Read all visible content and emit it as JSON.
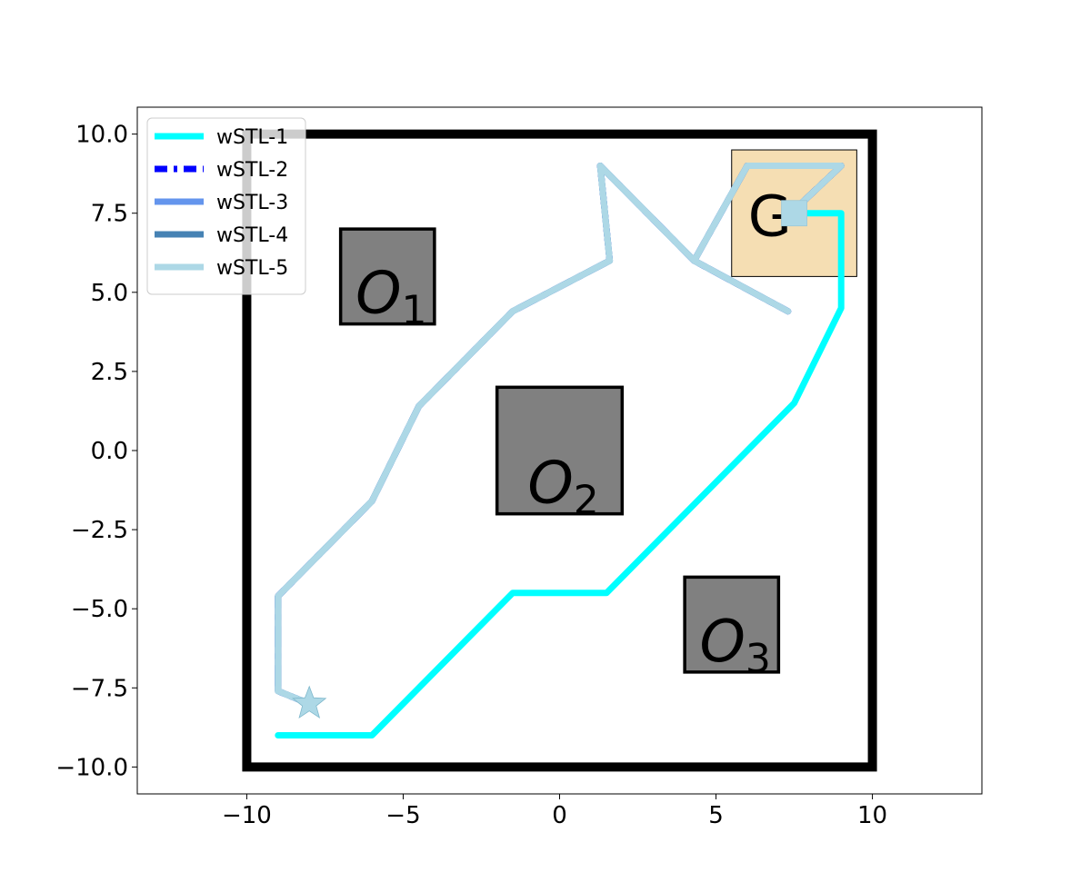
{
  "chart_data": {
    "type": "line",
    "xlim": [
      -13.5,
      13.5
    ],
    "ylim": [
      -10.85,
      10.85
    ],
    "xticks": [
      -10,
      -5,
      0,
      5,
      10
    ],
    "xtick_labels": [
      "−10",
      "−5",
      "0",
      "5",
      "10"
    ],
    "yticks": [
      -10,
      -7.5,
      -5,
      -2.5,
      0,
      2.5,
      5,
      7.5,
      10
    ],
    "ytick_labels": [
      "−10.0",
      "−7.5",
      "−5.0",
      "−2.5",
      "0.0",
      "2.5",
      "5.0",
      "7.5",
      "10.0"
    ],
    "grid": false,
    "legend_position": "upper-left",
    "boundary": {
      "x": [
        -10,
        10
      ],
      "y": [
        -10,
        10
      ],
      "color": "#000000"
    },
    "obstacles": [
      {
        "id": "O1",
        "label": "O",
        "subscript": "1",
        "x": [
          -7,
          -4
        ],
        "y": [
          4,
          7
        ],
        "color": "#808080"
      },
      {
        "id": "O2",
        "label": "O",
        "subscript": "2",
        "x": [
          -2,
          2
        ],
        "y": [
          -2,
          2
        ],
        "color": "#808080"
      },
      {
        "id": "O3",
        "label": "O",
        "subscript": "3",
        "x": [
          4,
          7
        ],
        "y": [
          -7,
          -4
        ],
        "color": "#808080"
      }
    ],
    "goal": {
      "label": "G",
      "x": [
        5.5,
        9.5
      ],
      "y": [
        5.5,
        9.5
      ],
      "color": "#f5deb3"
    },
    "series": [
      {
        "name": "wSTL-1",
        "color": "#00ffff",
        "style": "solid",
        "width": 7,
        "x": [
          -9.0,
          -6.0,
          -1.5,
          1.5,
          7.5,
          9.0,
          9.0,
          7.5,
          7.5
        ],
        "y": [
          -9.0,
          -9.0,
          -4.5,
          -4.5,
          1.5,
          4.5,
          7.5,
          7.5,
          7.2
        ]
      },
      {
        "name": "wSTL-2",
        "color": "#0000ff",
        "style": "dashdot",
        "width": 7,
        "x": [
          -8.0,
          -9.0,
          -9.0,
          -6.0,
          -4.5,
          -1.5,
          1.6,
          1.3,
          4.3,
          7.3,
          4.3,
          6.0,
          9.0,
          7.5
        ],
        "y": [
          -8.0,
          -7.6,
          -4.6,
          -1.6,
          1.4,
          4.4,
          6.0,
          9.0,
          6.0,
          4.4,
          6.0,
          9.0,
          9.0,
          7.6
        ]
      },
      {
        "name": "wSTL-3",
        "color": "#6495ed",
        "style": "solid",
        "width": 7,
        "x": [
          -8.0,
          -9.0,
          -9.0,
          -6.0,
          -4.5,
          -1.5,
          1.6,
          1.3,
          4.3,
          7.3,
          4.3,
          6.0,
          9.0,
          7.5
        ],
        "y": [
          -8.0,
          -7.6,
          -4.6,
          -1.6,
          1.4,
          4.4,
          6.0,
          9.0,
          6.0,
          4.4,
          6.0,
          9.0,
          9.0,
          7.6
        ]
      },
      {
        "name": "wSTL-4",
        "color": "#4682b4",
        "style": "solid",
        "width": 7,
        "x": [
          -8.0,
          -9.0,
          -9.0,
          -6.0,
          -4.5,
          -1.5,
          1.6,
          1.3,
          4.3,
          7.3,
          4.3,
          6.0,
          9.0,
          7.5
        ],
        "y": [
          -8.0,
          -7.6,
          -4.6,
          -1.6,
          1.4,
          4.4,
          6.0,
          9.0,
          6.0,
          4.4,
          6.0,
          9.0,
          9.0,
          7.6
        ]
      },
      {
        "name": "wSTL-5",
        "color": "#add8e6",
        "style": "solid",
        "width": 7,
        "x": [
          -8.0,
          -9.0,
          -9.0,
          -6.0,
          -4.5,
          -1.5,
          1.6,
          1.3,
          4.3,
          7.3,
          4.3,
          6.0,
          9.0,
          7.5
        ],
        "y": [
          -8.0,
          -7.6,
          -4.6,
          -1.6,
          1.4,
          4.4,
          6.0,
          9.0,
          6.0,
          4.4,
          6.0,
          9.0,
          9.0,
          7.6
        ]
      }
    ],
    "start_marker": {
      "shape": "star",
      "x": -8.0,
      "y": -8.0,
      "color": "#add8e6"
    },
    "end_marker": {
      "shape": "square",
      "x": 7.5,
      "y": 7.5,
      "color": "#add8e6"
    }
  }
}
